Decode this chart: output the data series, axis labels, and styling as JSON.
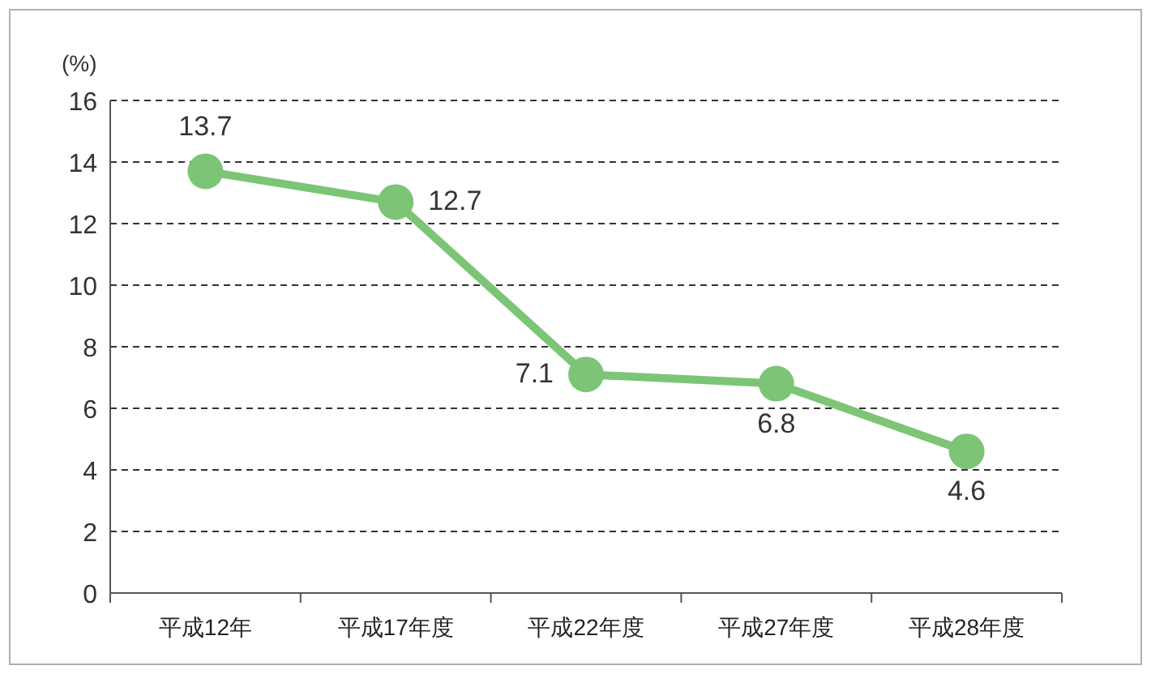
{
  "chart_data": {
    "type": "line",
    "ylabel": "(%)",
    "categories": [
      "平成12年",
      "平成17年度",
      "平成22年度",
      "平成27年度",
      "平成28年度"
    ],
    "series": [
      {
        "color": "#7cc576",
        "values": [
          13.7,
          12.7,
          7.1,
          6.8,
          4.6
        ]
      }
    ],
    "ylim": [
      0,
      16
    ],
    "yticks": [
      0,
      2,
      4,
      6,
      8,
      10,
      12,
      14,
      16
    ],
    "grid": "y",
    "marker": "circle",
    "line_style": "solid",
    "data_labels": true
  }
}
